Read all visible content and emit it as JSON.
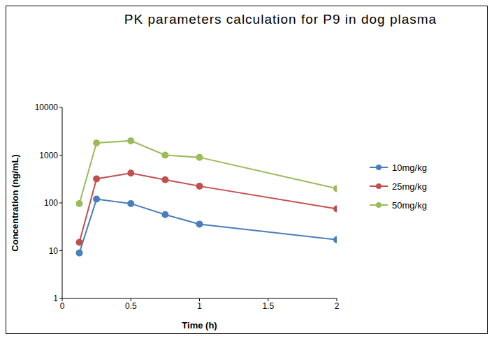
{
  "chart_data": {
    "type": "line",
    "title": "PK parameters calculation for P9 in dog plasma",
    "x_label": "Time (h)",
    "y_label": "Concentration (ng/mL)",
    "x": [
      0.125,
      0.25,
      0.5,
      0.75,
      1,
      2
    ],
    "series": [
      {
        "name": "10mg/kg",
        "color": "#4a7ebb",
        "values": [
          9,
          120,
          97,
          57,
          36,
          17
        ],
        "marker": "circle",
        "line_style": "solid"
      },
      {
        "name": "25mg/kg",
        "color": "#c0504d",
        "values": [
          15,
          320,
          420,
          305,
          225,
          75
        ],
        "marker": "circle",
        "line_style": "solid"
      },
      {
        "name": "50mg/kg",
        "color": "#9bbb59",
        "values": [
          97,
          1800,
          2000,
          1000,
          900,
          200
        ],
        "marker": "circle",
        "line_style": "solid"
      }
    ],
    "xlim": [
      0,
      2
    ],
    "xticks": [
      0,
      0.5,
      1,
      1.5,
      2
    ],
    "ylim": [
      1,
      10000
    ],
    "yticks": [
      1,
      10,
      100,
      1000,
      10000
    ],
    "log": "y",
    "grid": false,
    "legend": "right"
  }
}
